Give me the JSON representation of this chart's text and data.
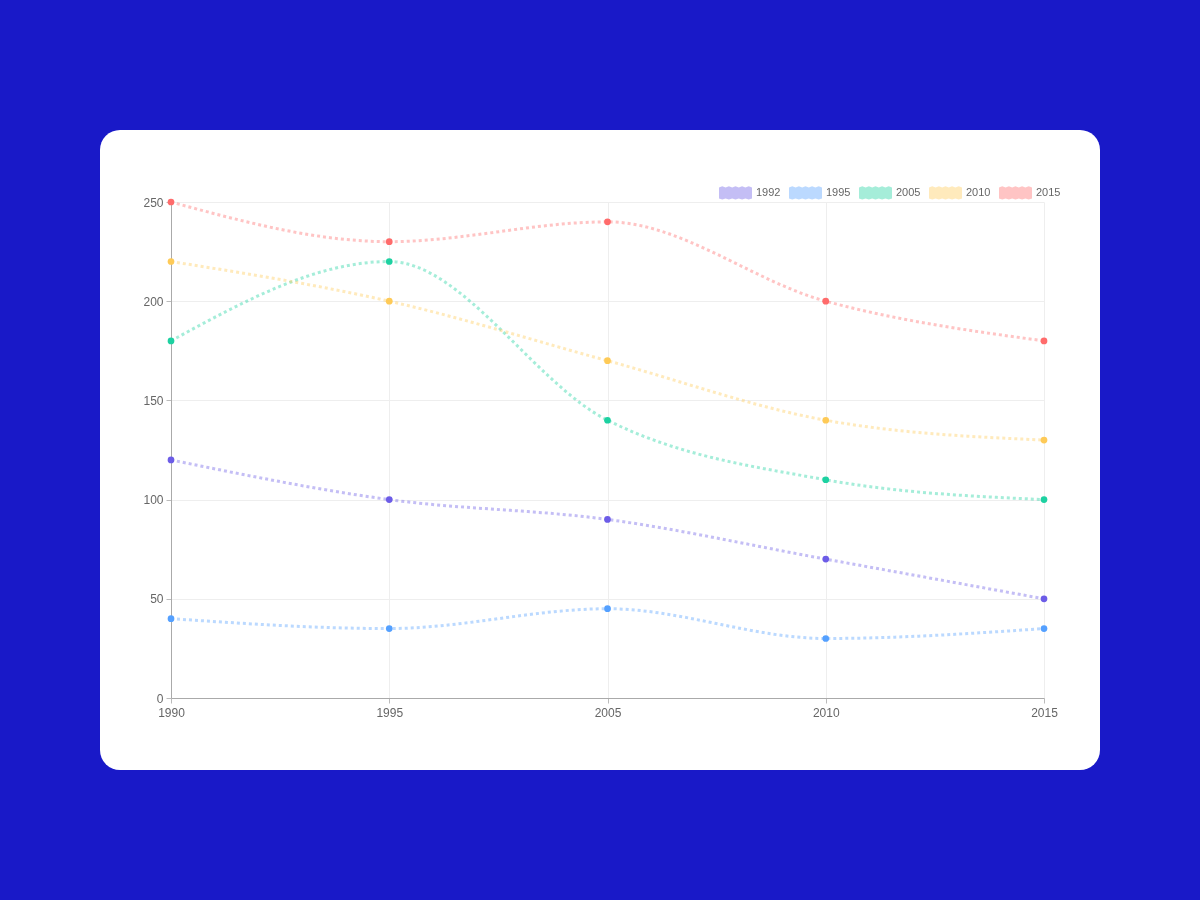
{
  "chart_data": {
    "type": "line",
    "categories": [
      "1990",
      "1995",
      "2005",
      "2010",
      "2015"
    ],
    "series": [
      {
        "name": "1992",
        "color": "#6c5ce7",
        "values": [
          120,
          100,
          90,
          70,
          50
        ]
      },
      {
        "name": "1995",
        "color": "#54a0ff",
        "values": [
          40,
          35,
          45,
          30,
          35
        ]
      },
      {
        "name": "2005",
        "color": "#1dd1a1",
        "values": [
          180,
          220,
          140,
          110,
          100
        ]
      },
      {
        "name": "2010",
        "color": "#feca57",
        "values": [
          220,
          200,
          170,
          140,
          130
        ]
      },
      {
        "name": "2015",
        "color": "#ff6b6b",
        "values": [
          250,
          230,
          240,
          200,
          180
        ]
      }
    ],
    "ylim": [
      0,
      250
    ],
    "yticks": [
      0,
      50,
      100,
      150,
      200,
      250
    ],
    "grid": true,
    "legend": "top right",
    "marker": "circle",
    "line_style": "dotted"
  }
}
